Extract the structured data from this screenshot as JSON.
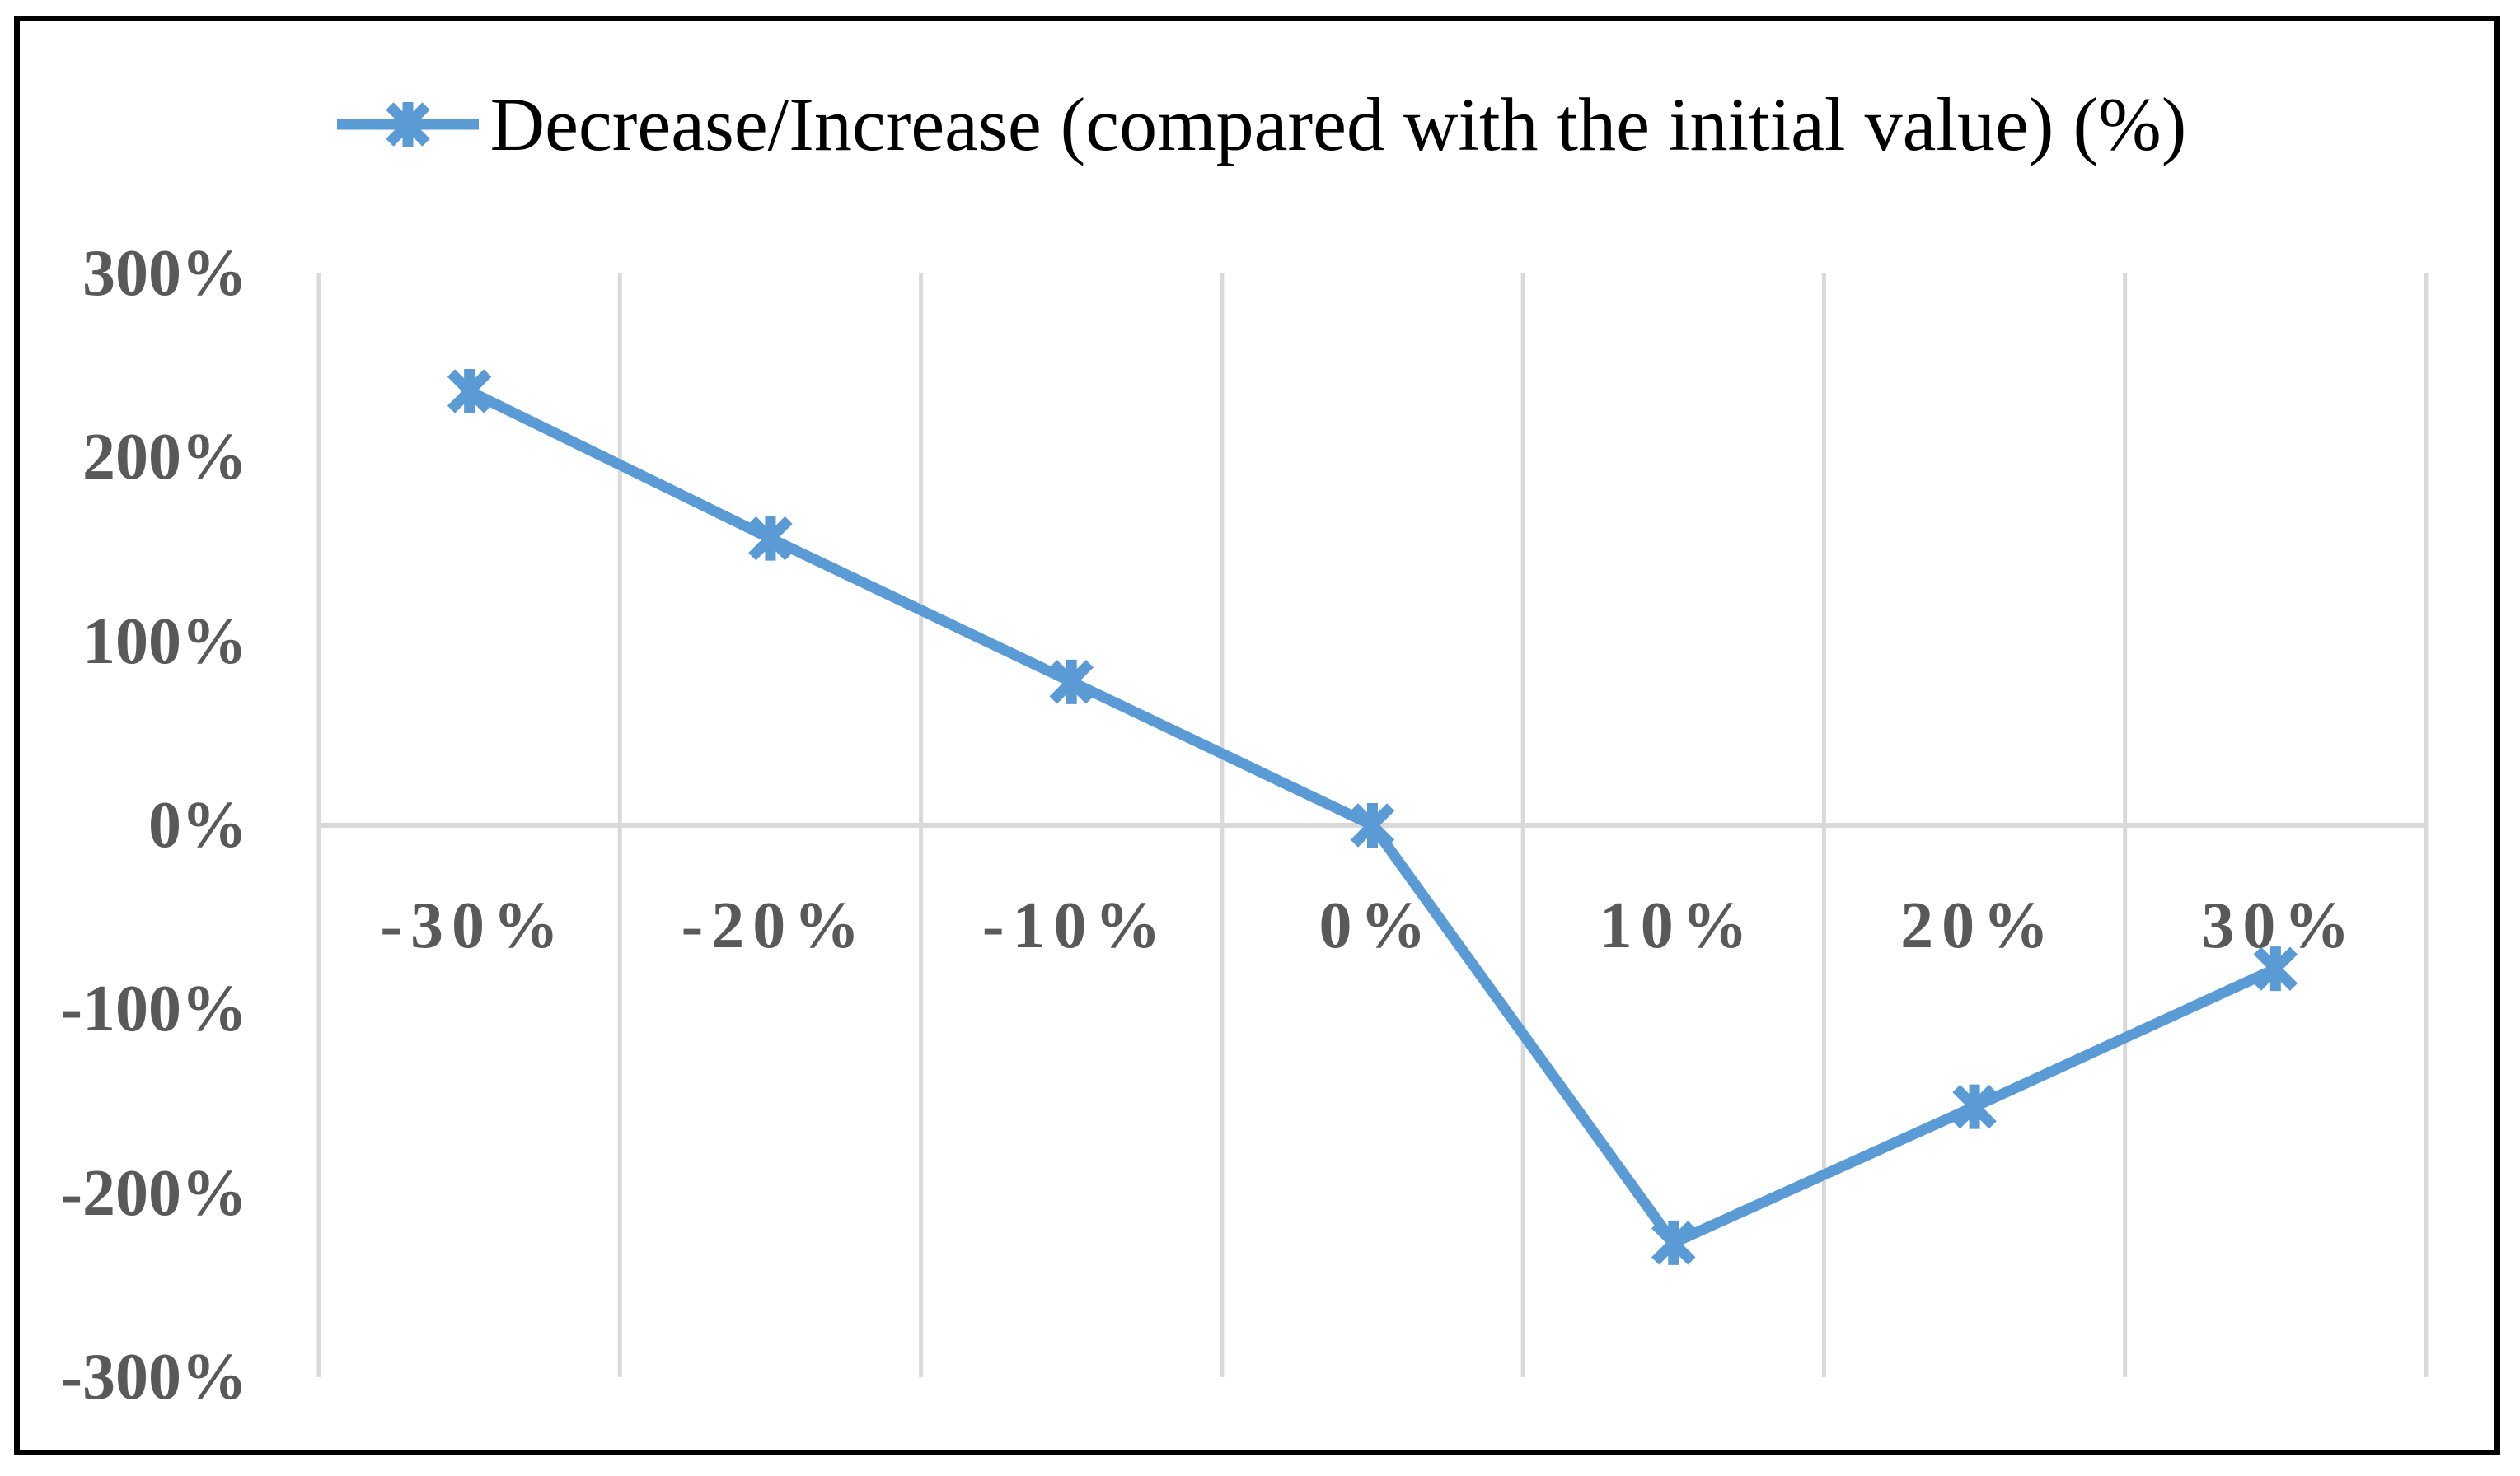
{
  "legend": {
    "label": "Decrease/Increase (compared with the initial value) (%)"
  },
  "chart_data": {
    "type": "line",
    "title": "",
    "categories": [
      "-30%",
      "-20%",
      "-10%",
      "0%",
      "10%",
      "20%",
      "30%"
    ],
    "series": [
      {
        "name": "Decrease/Increase (compared with the initial value) (%)",
        "values": [
          236,
          156,
          78,
          0,
          -227,
          -153,
          -78
        ]
      }
    ],
    "xlabel": "",
    "ylabel": "",
    "y_ticks": [
      {
        "value": 300,
        "label": "300%"
      },
      {
        "value": 200,
        "label": "200%"
      },
      {
        "value": 100,
        "label": "100%"
      },
      {
        "value": 0,
        "label": "0%"
      },
      {
        "value": -100,
        "label": "-100%"
      },
      {
        "value": -200,
        "label": "-200%"
      },
      {
        "value": -300,
        "label": "-300%"
      }
    ],
    "ylim": [
      -300,
      300
    ],
    "grid": "vertical gridlines between categories + horizontal zero axis line",
    "legend_position": "top-center",
    "marker": "asterisk-star",
    "colors": {
      "series": "#5B9BD5",
      "gridline": "#D9D9D9",
      "zero_line": "#D9D9D9",
      "axis_text": "#595959",
      "legend_text": "#000000",
      "frame": "#000000",
      "background": "#FFFFFF"
    }
  }
}
